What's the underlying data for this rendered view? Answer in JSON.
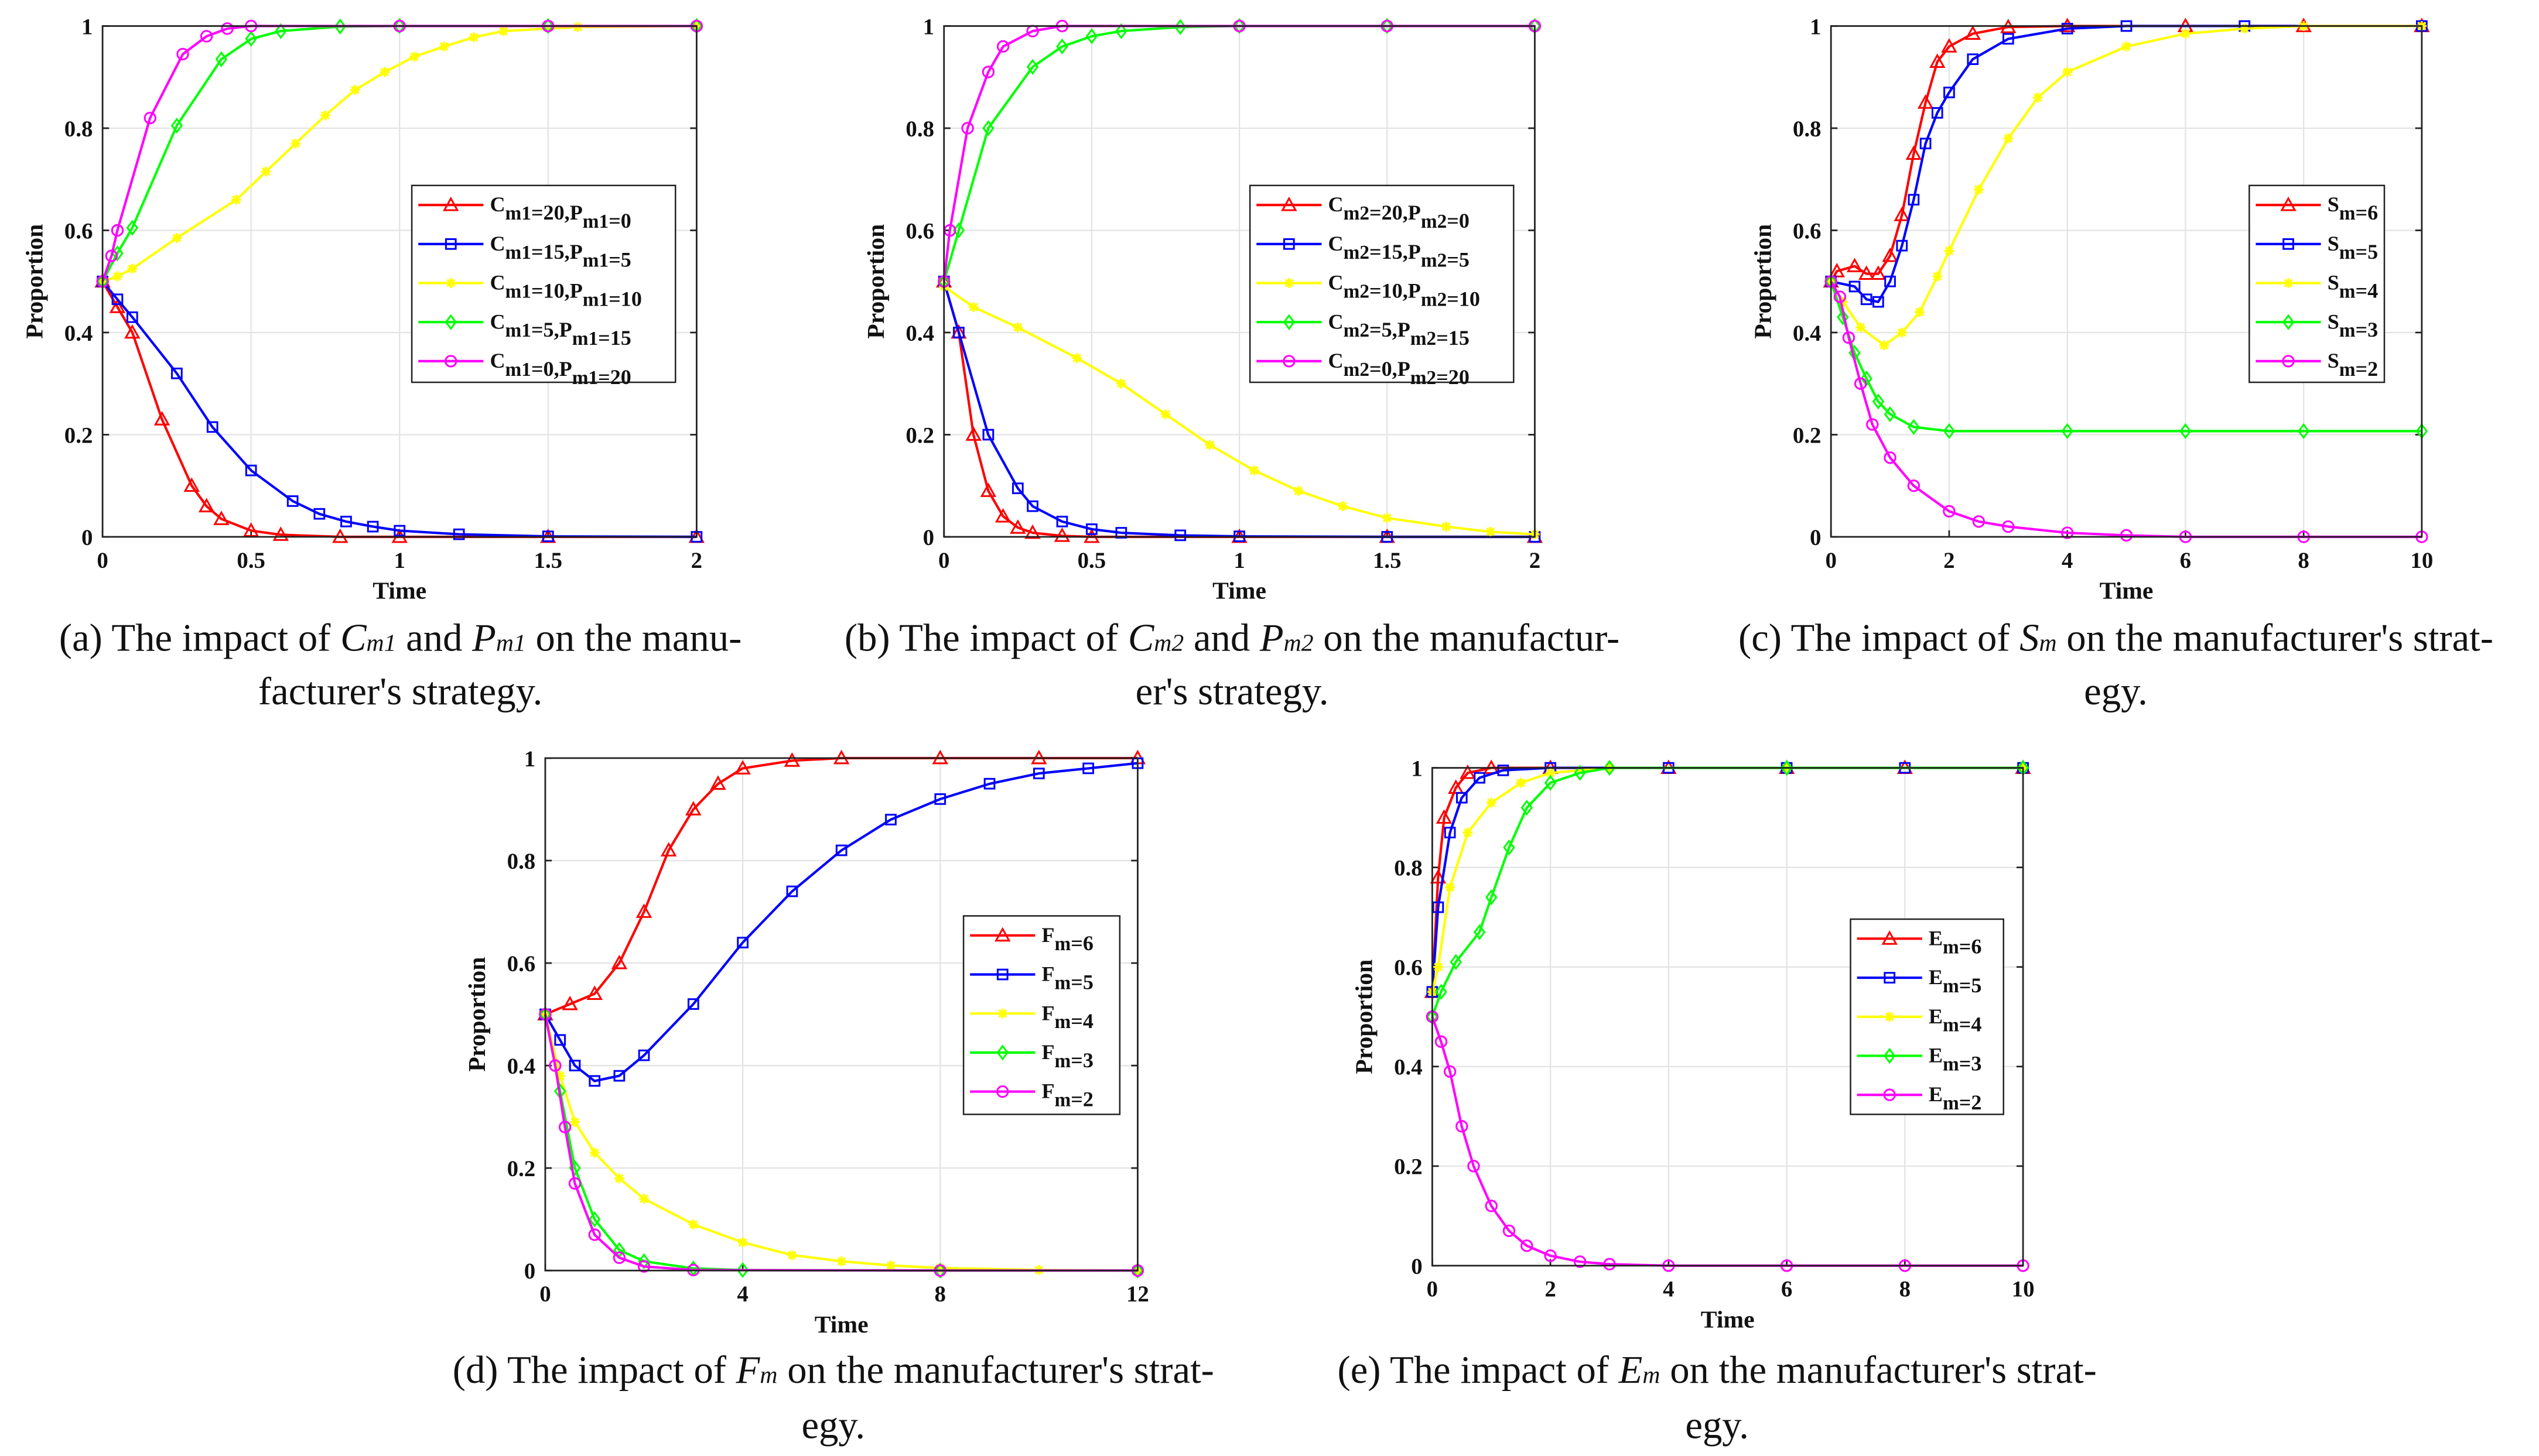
{
  "captions": [
    {
      "l1a": "(a) The impact of ",
      "v1": "C",
      "s1": "m1",
      "mid": " and ",
      "v2": "P",
      "s2": "m1",
      "l1b": " on the manu-",
      "l2": "facturer's strategy."
    },
    {
      "l1a": "(b) The impact of ",
      "v1": "C",
      "s1": "m2",
      "mid": " and ",
      "v2": "P",
      "s2": "m2",
      "l1b": " on the manufactur-",
      "l2": "er's strategy."
    },
    {
      "l1a": "(c) The impact of ",
      "v1": "S",
      "s1": "m",
      "mid": "",
      "v2": "",
      "s2": "",
      "l1b": " on the manufacturer's strat-",
      "l2": "egy."
    },
    {
      "l1a": "(d) The impact of ",
      "v1": "F",
      "s1": "m",
      "mid": "",
      "v2": "",
      "s2": "",
      "l1b": " on the manufacturer's strat-",
      "l2": "egy."
    },
    {
      "l1a": "(e) The impact of ",
      "v1": "E",
      "s1": "m",
      "mid": "",
      "v2": "",
      "s2": "",
      "l1b": " on the manufacturer's strat-",
      "l2": "egy."
    }
  ],
  "colors": {
    "red": "#ff0000",
    "blue": "#0000ff",
    "yellow": "#ffff00",
    "green": "#00ff00",
    "magenta": "#ff00ff"
  },
  "chart_data": [
    {
      "type": "line",
      "xlabel": "Time",
      "ylabel": "Proportion",
      "xlim": [
        0,
        2
      ],
      "ylim": [
        0,
        1
      ],
      "xticks": [
        "0",
        "0.5",
        "1",
        "1.5",
        "2"
      ],
      "xtickvals": [
        0,
        0.5,
        1,
        1.5,
        2
      ],
      "yticks": [
        "0",
        "0.2",
        "0.4",
        "0.6",
        "0.8",
        "1"
      ],
      "grid": true,
      "legend": "center-right",
      "series": [
        {
          "name": "Cm1=20,Pm1=0",
          "color": "red",
          "marker": "triangle",
          "x": [
            0,
            0.05,
            0.1,
            0.2,
            0.3,
            0.35,
            0.4,
            0.5,
            0.6,
            0.8,
            1,
            1.5,
            2
          ],
          "y": [
            0.5,
            0.45,
            0.4,
            0.23,
            0.1,
            0.06,
            0.035,
            0.012,
            0.004,
            0,
            0,
            0,
            0
          ]
        },
        {
          "name": "Cm1=15,Pm1=5",
          "color": "blue",
          "marker": "square",
          "x": [
            0,
            0.05,
            0.1,
            0.25,
            0.37,
            0.5,
            0.64,
            0.73,
            0.82,
            0.91,
            1,
            1.2,
            1.5,
            2
          ],
          "y": [
            0.5,
            0.465,
            0.43,
            0.32,
            0.215,
            0.13,
            0.07,
            0.045,
            0.03,
            0.02,
            0.012,
            0.005,
            0.001,
            0
          ]
        },
        {
          "name": "Cm1=10,Pm1=10",
          "color": "yellow",
          "marker": "star",
          "x": [
            0,
            0.05,
            0.1,
            0.25,
            0.45,
            0.55,
            0.65,
            0.75,
            0.85,
            0.95,
            1.05,
            1.15,
            1.25,
            1.35,
            1.6,
            2
          ],
          "y": [
            0.5,
            0.51,
            0.525,
            0.585,
            0.66,
            0.715,
            0.77,
            0.825,
            0.875,
            0.91,
            0.94,
            0.96,
            0.978,
            0.99,
            0.998,
            1
          ]
        },
        {
          "name": "Cm1=5,Pm1=15",
          "color": "green",
          "marker": "diamond",
          "x": [
            0,
            0.05,
            0.1,
            0.25,
            0.4,
            0.5,
            0.6,
            0.8,
            1,
            1.5,
            2
          ],
          "y": [
            0.5,
            0.555,
            0.605,
            0.805,
            0.935,
            0.975,
            0.99,
            0.999,
            1,
            1,
            1
          ]
        },
        {
          "name": "Cm1=0,Pm1=20",
          "color": "magenta",
          "marker": "circle",
          "x": [
            0,
            0.03,
            0.05,
            0.16,
            0.27,
            0.35,
            0.42,
            0.5,
            1,
            1.5,
            2
          ],
          "y": [
            0.5,
            0.55,
            0.6,
            0.82,
            0.945,
            0.98,
            0.995,
            1,
            1,
            1,
            1
          ]
        }
      ]
    },
    {
      "type": "line",
      "xlabel": "Time",
      "ylabel": "Proportion",
      "xlim": [
        0,
        2
      ],
      "ylim": [
        0,
        1
      ],
      "xticks": [
        "0",
        "0.5",
        "1",
        "1.5",
        "2"
      ],
      "xtickvals": [
        0,
        0.5,
        1,
        1.5,
        2
      ],
      "yticks": [
        "0",
        "0.2",
        "0.4",
        "0.6",
        "0.8",
        "1"
      ],
      "grid": true,
      "legend": "center-right",
      "series": [
        {
          "name": "Cm2=20,Pm2=0",
          "color": "red",
          "marker": "triangle",
          "x": [
            0,
            0.05,
            0.1,
            0.15,
            0.2,
            0.25,
            0.3,
            0.4,
            0.5,
            1,
            1.5,
            2
          ],
          "y": [
            0.5,
            0.4,
            0.2,
            0.09,
            0.04,
            0.018,
            0.008,
            0.002,
            0,
            0,
            0,
            0
          ]
        },
        {
          "name": "Cm2=15,Pm2=5",
          "color": "blue",
          "marker": "square",
          "x": [
            0,
            0.05,
            0.15,
            0.25,
            0.3,
            0.4,
            0.5,
            0.6,
            0.8,
            1,
            1.5,
            2
          ],
          "y": [
            0.5,
            0.4,
            0.2,
            0.095,
            0.06,
            0.03,
            0.015,
            0.008,
            0.003,
            0.001,
            0,
            0
          ]
        },
        {
          "name": "Cm2=10,Pm2=10",
          "color": "yellow",
          "marker": "star",
          "x": [
            0,
            0.1,
            0.25,
            0.45,
            0.6,
            0.75,
            0.9,
            1.05,
            1.2,
            1.35,
            1.5,
            1.7,
            1.85,
            2
          ],
          "y": [
            0.49,
            0.45,
            0.41,
            0.35,
            0.3,
            0.24,
            0.18,
            0.13,
            0.09,
            0.06,
            0.037,
            0.02,
            0.01,
            0.005
          ]
        },
        {
          "name": "Cm2=5,Pm2=15",
          "color": "green",
          "marker": "diamond",
          "x": [
            0,
            0.05,
            0.15,
            0.3,
            0.4,
            0.5,
            0.6,
            0.8,
            1,
            1.5,
            2
          ],
          "y": [
            0.5,
            0.6,
            0.8,
            0.92,
            0.96,
            0.98,
            0.99,
            0.998,
            1,
            1,
            1
          ]
        },
        {
          "name": "Cm2=0,Pm2=20",
          "color": "magenta",
          "marker": "circle",
          "x": [
            0,
            0.02,
            0.08,
            0.15,
            0.2,
            0.3,
            0.4,
            1,
            1.5,
            2
          ],
          "y": [
            0.5,
            0.6,
            0.8,
            0.91,
            0.96,
            0.99,
            1,
            1,
            1,
            1
          ]
        }
      ]
    },
    {
      "type": "line",
      "xlabel": "Time",
      "ylabel": "Proportion",
      "xlim": [
        0,
        10
      ],
      "ylim": [
        0,
        1
      ],
      "xticks": [
        "0",
        "2",
        "4",
        "6",
        "8",
        "10"
      ],
      "xtickvals": [
        0,
        2,
        4,
        6,
        8,
        10
      ],
      "yticks": [
        "0",
        "0.2",
        "0.4",
        "0.6",
        "0.8",
        "1"
      ],
      "grid": true,
      "legend": "center-right",
      "series": [
        {
          "name": "Sm=6",
          "color": "red",
          "marker": "triangle",
          "x": [
            0,
            0.1,
            0.4,
            0.6,
            0.8,
            1,
            1.2,
            1.4,
            1.6,
            1.8,
            2,
            2.4,
            3,
            4,
            6,
            8,
            10
          ],
          "y": [
            0.5,
            0.52,
            0.53,
            0.515,
            0.515,
            0.55,
            0.63,
            0.75,
            0.85,
            0.93,
            0.96,
            0.985,
            0.998,
            1,
            1,
            1,
            1
          ]
        },
        {
          "name": "Sm=5",
          "color": "blue",
          "marker": "square",
          "x": [
            0,
            0.4,
            0.6,
            0.8,
            1,
            1.2,
            1.4,
            1.6,
            1.8,
            2,
            2.4,
            3,
            4,
            5,
            7,
            10
          ],
          "y": [
            0.5,
            0.49,
            0.465,
            0.46,
            0.5,
            0.57,
            0.66,
            0.77,
            0.83,
            0.87,
            0.935,
            0.975,
            0.995,
            1,
            1,
            1
          ]
        },
        {
          "name": "Sm=4",
          "color": "yellow",
          "marker": "star",
          "x": [
            0,
            0.2,
            0.5,
            0.9,
            1.2,
            1.5,
            1.8,
            2,
            2.5,
            3,
            3.5,
            4,
            5,
            6,
            7,
            8,
            10
          ],
          "y": [
            0.5,
            0.46,
            0.41,
            0.375,
            0.4,
            0.44,
            0.51,
            0.56,
            0.68,
            0.78,
            0.86,
            0.91,
            0.96,
            0.985,
            0.995,
            1,
            1
          ]
        },
        {
          "name": "Sm=3",
          "color": "green",
          "marker": "diamond",
          "x": [
            0,
            0.2,
            0.4,
            0.6,
            0.8,
            1,
            1.4,
            2,
            4,
            6,
            8,
            10
          ],
          "y": [
            0.5,
            0.43,
            0.36,
            0.31,
            0.265,
            0.24,
            0.215,
            0.207,
            0.207,
            0.207,
            0.207,
            0.207
          ]
        },
        {
          "name": "Sm=2",
          "color": "magenta",
          "marker": "circle",
          "x": [
            0,
            0.15,
            0.3,
            0.5,
            0.7,
            1,
            1.4,
            2,
            2.5,
            3,
            4,
            5,
            6,
            8,
            10
          ],
          "y": [
            0.5,
            0.47,
            0.39,
            0.3,
            0.22,
            0.155,
            0.1,
            0.05,
            0.03,
            0.02,
            0.008,
            0.003,
            0,
            0,
            0
          ]
        }
      ]
    },
    {
      "type": "line",
      "xlabel": "Time",
      "ylabel": "Proportion",
      "xlim": [
        0,
        12
      ],
      "ylim": [
        0,
        1
      ],
      "xticks": [
        "0",
        "4",
        "8",
        "12"
      ],
      "xtickvals": [
        0,
        4,
        8,
        12
      ],
      "yticks": [
        "0",
        "0.2",
        "0.4",
        "0.6",
        "0.8",
        "1"
      ],
      "grid": true,
      "legend": "center-right",
      "series": [
        {
          "name": "Fm=6",
          "color": "red",
          "marker": "triangle",
          "x": [
            0,
            0.5,
            1,
            1.5,
            2,
            2.5,
            3,
            3.5,
            4,
            5,
            6,
            8,
            10,
            12
          ],
          "y": [
            0.5,
            0.52,
            0.54,
            0.6,
            0.7,
            0.82,
            0.9,
            0.95,
            0.98,
            0.995,
            1,
            1,
            1,
            1
          ]
        },
        {
          "name": "Fm=5",
          "color": "blue",
          "marker": "square",
          "x": [
            0,
            0.3,
            0.6,
            1,
            1.5,
            2,
            3,
            4,
            5,
            6,
            7,
            8,
            9,
            10,
            11,
            12
          ],
          "y": [
            0.5,
            0.45,
            0.4,
            0.37,
            0.38,
            0.42,
            0.52,
            0.64,
            0.74,
            0.82,
            0.88,
            0.92,
            0.95,
            0.97,
            0.98,
            0.99
          ]
        },
        {
          "name": "Fm=4",
          "color": "yellow",
          "marker": "star",
          "x": [
            0,
            0.3,
            0.6,
            1,
            1.5,
            2,
            3,
            4,
            5,
            6,
            7,
            8,
            10,
            12
          ],
          "y": [
            0.5,
            0.38,
            0.29,
            0.23,
            0.18,
            0.14,
            0.09,
            0.055,
            0.03,
            0.018,
            0.01,
            0.005,
            0.001,
            0
          ]
        },
        {
          "name": "Fm=3",
          "color": "green",
          "marker": "diamond",
          "x": [
            0,
            0.3,
            0.6,
            1,
            1.5,
            2,
            3,
            4,
            8,
            12
          ],
          "y": [
            0.5,
            0.35,
            0.2,
            0.1,
            0.04,
            0.018,
            0.004,
            0.001,
            0,
            0
          ]
        },
        {
          "name": "Fm=2",
          "color": "magenta",
          "marker": "circle",
          "x": [
            0,
            0.2,
            0.4,
            0.6,
            1,
            1.5,
            2,
            3,
            8,
            12
          ],
          "y": [
            0.5,
            0.4,
            0.28,
            0.17,
            0.07,
            0.025,
            0.008,
            0.001,
            0,
            0
          ]
        }
      ]
    },
    {
      "type": "line",
      "xlabel": "Time",
      "ylabel": "Proportion",
      "xlim": [
        0,
        10
      ],
      "ylim": [
        0,
        1
      ],
      "xticks": [
        "0",
        "2",
        "4",
        "6",
        "8",
        "10"
      ],
      "xtickvals": [
        0,
        2,
        4,
        6,
        8,
        10
      ],
      "yticks": [
        "0",
        "0.2",
        "0.4",
        "0.6",
        "0.8",
        "1"
      ],
      "grid": true,
      "legend": "center-right",
      "series": [
        {
          "name": "Em=6",
          "color": "red",
          "marker": "triangle",
          "x": [
            0,
            0.1,
            0.2,
            0.4,
            0.6,
            1,
            2,
            4,
            6,
            8,
            10
          ],
          "y": [
            0.55,
            0.78,
            0.9,
            0.96,
            0.99,
            1,
            1,
            1,
            1,
            1,
            1
          ]
        },
        {
          "name": "Em=5",
          "color": "blue",
          "marker": "square",
          "x": [
            0,
            0.1,
            0.3,
            0.5,
            0.8,
            1.2,
            2,
            4,
            6,
            8,
            10
          ],
          "y": [
            0.55,
            0.72,
            0.87,
            0.94,
            0.98,
            0.995,
            1,
            1,
            1,
            1,
            1
          ]
        },
        {
          "name": "Em=4",
          "color": "yellow",
          "marker": "star",
          "x": [
            0,
            0.1,
            0.3,
            0.6,
            1,
            1.5,
            2,
            3,
            6,
            10
          ],
          "y": [
            0.55,
            0.6,
            0.76,
            0.87,
            0.93,
            0.97,
            0.99,
            1,
            1,
            1
          ]
        },
        {
          "name": "Em=3",
          "color": "green",
          "marker": "diamond",
          "x": [
            0,
            0.15,
            0.4,
            0.8,
            1,
            1.3,
            1.6,
            2,
            2.5,
            3,
            6,
            10
          ],
          "y": [
            0.5,
            0.55,
            0.61,
            0.67,
            0.74,
            0.84,
            0.92,
            0.97,
            0.99,
            1,
            1,
            1
          ]
        },
        {
          "name": "Em=2",
          "color": "magenta",
          "marker": "circle",
          "x": [
            0,
            0.15,
            0.3,
            0.5,
            0.7,
            1,
            1.3,
            1.6,
            2,
            2.5,
            3,
            4,
            6,
            8,
            10
          ],
          "y": [
            0.5,
            0.45,
            0.39,
            0.28,
            0.2,
            0.12,
            0.07,
            0.04,
            0.02,
            0.008,
            0.003,
            0,
            0,
            0,
            0
          ]
        }
      ]
    }
  ]
}
